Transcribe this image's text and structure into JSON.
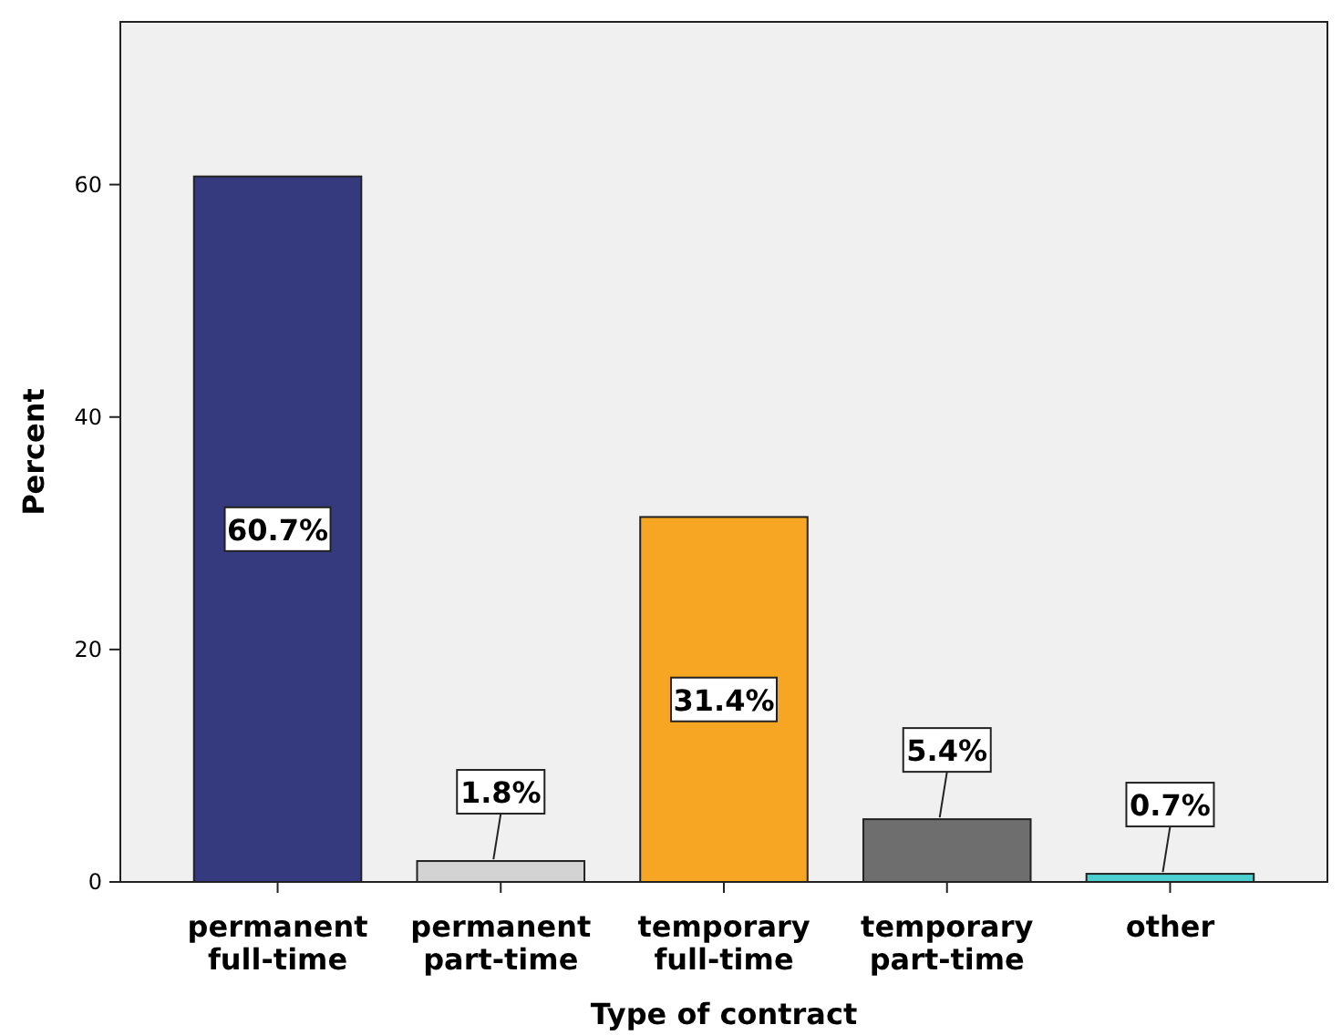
{
  "chart_data": {
    "type": "bar",
    "xlabel": "Type of contract",
    "ylabel": "Percent",
    "categories": [
      "permanent full-time",
      "permanent part-time",
      "temporary full-time",
      "temporary part-time",
      "other"
    ],
    "values": [
      60.7,
      1.8,
      31.4,
      5.4,
      0.7
    ],
    "colors": [
      "#353a7e",
      "#d3d3d3",
      "#f6a623",
      "#6e6e6e",
      "#4ccfcf"
    ],
    "value_labels": [
      "60.7%",
      "1.8%",
      "31.4%",
      "5.4%",
      "0.7%"
    ],
    "ylim": [
      0,
      74
    ],
    "yticks": [
      0,
      20,
      40,
      60
    ],
    "grid": false
  }
}
